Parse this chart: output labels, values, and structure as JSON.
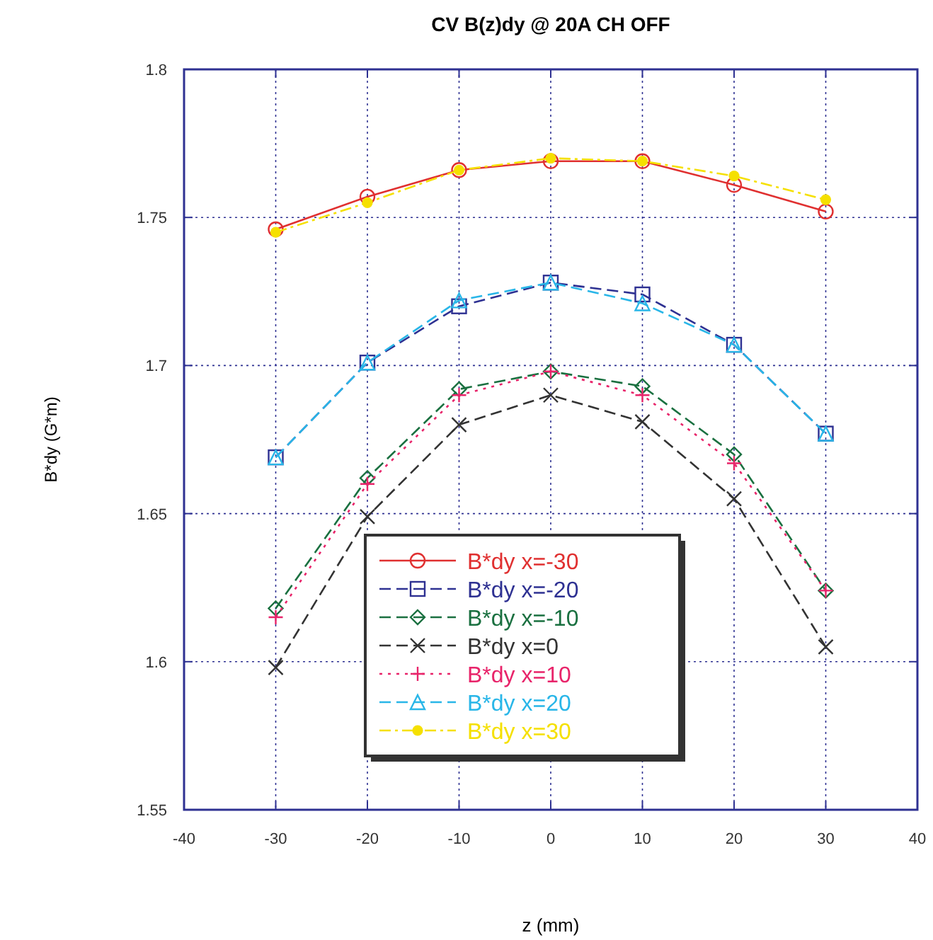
{
  "chart_data": {
    "type": "line",
    "title": "CV B(z)dy @ 20A CH OFF",
    "xlabel": "z (mm)",
    "ylabel": "B*dy (G*m)",
    "x": [
      -30,
      -20,
      -10,
      0,
      10,
      20,
      30
    ],
    "series": [
      {
        "name": "B*dy x=-30",
        "color": "#e03030",
        "marker": "circle",
        "line_style": "solid",
        "values": [
          1.746,
          1.757,
          1.766,
          1.769,
          1.769,
          1.761,
          1.752
        ]
      },
      {
        "name": "B*dy x=-20",
        "color": "#2e3192",
        "marker": "square",
        "line_style": "dashed",
        "values": [
          1.669,
          1.701,
          1.72,
          1.728,
          1.724,
          1.707,
          1.677
        ]
      },
      {
        "name": "B*dy x=-10",
        "color": "#1a7040",
        "marker": "diamond",
        "line_style": "dashed",
        "values": [
          1.618,
          1.662,
          1.692,
          1.698,
          1.693,
          1.67,
          1.624
        ]
      },
      {
        "name": "B*dy x=0",
        "color": "#333333",
        "marker": "cross",
        "line_style": "dashed",
        "values": [
          1.598,
          1.649,
          1.68,
          1.69,
          1.681,
          1.655,
          1.605
        ]
      },
      {
        "name": "B*dy x=10",
        "color": "#e8246a",
        "marker": "plus",
        "line_style": "dotted",
        "values": [
          1.615,
          1.66,
          1.69,
          1.698,
          1.69,
          1.667,
          1.624
        ]
      },
      {
        "name": "B*dy x=20",
        "color": "#29b6e8",
        "marker": "triangle",
        "line_style": "dashed",
        "values": [
          1.669,
          1.701,
          1.722,
          1.728,
          1.721,
          1.707,
          1.677
        ]
      },
      {
        "name": "B*dy x=30",
        "color": "#f5e000",
        "marker": "filled-circle",
        "line_style": "dashdot",
        "values": [
          1.745,
          1.755,
          1.766,
          1.77,
          1.769,
          1.764,
          1.756
        ]
      }
    ],
    "xlim": [
      -40,
      40
    ],
    "xticks": [
      -40,
      -30,
      -20,
      -10,
      0,
      10,
      20,
      30,
      40
    ],
    "ylim": [
      1.55,
      1.8
    ],
    "yticks": [
      1.55,
      1.6,
      1.65,
      1.7,
      1.75,
      1.8
    ],
    "grid": true,
    "legend": "bottom"
  }
}
